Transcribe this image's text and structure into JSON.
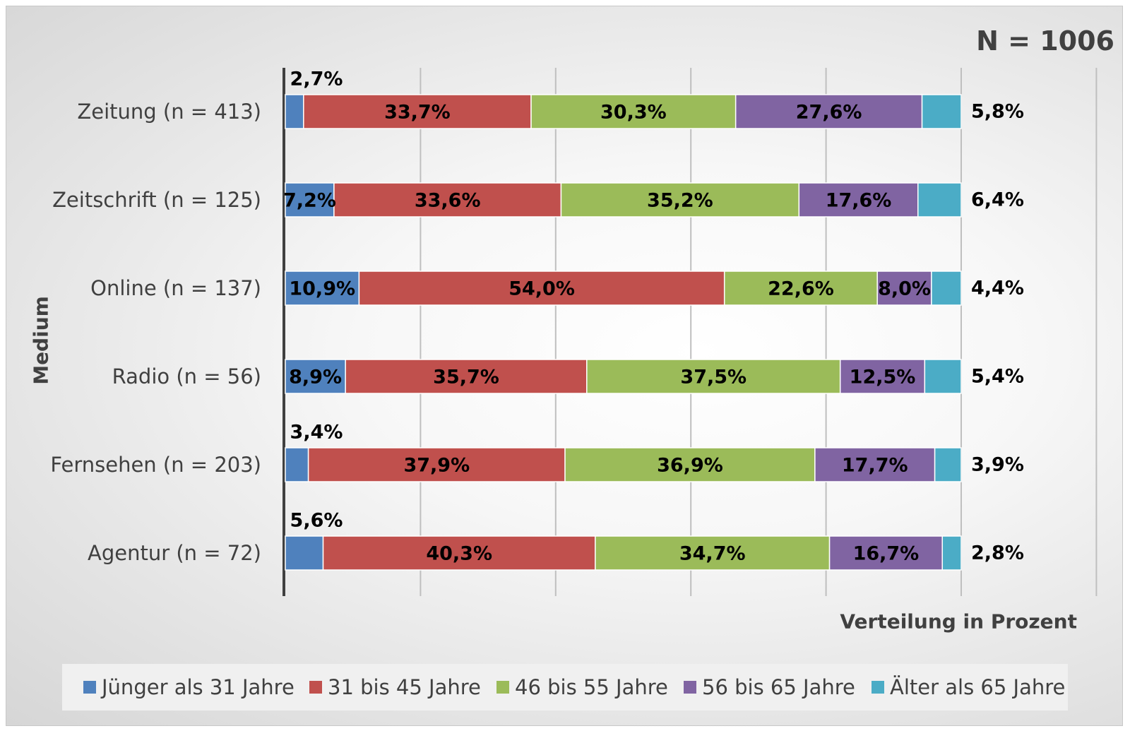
{
  "chart_data": {
    "type": "bar",
    "orientation": "horizontal",
    "stacked": true,
    "annotation": "N = 1006",
    "ylabel": "Medium",
    "xlabel": "Verteilung in Prozent",
    "xlim": [
      0,
      100
    ],
    "grid": true,
    "legend_position": "bottom",
    "categories": [
      "Zeitung (n = 413)",
      "Zeitschrift (n = 125)",
      "Online (n = 137)",
      "Radio (n = 56)",
      "Fernsehen (n = 203)",
      "Agentur (n = 72)"
    ],
    "series": [
      {
        "name": "Jünger als 31 Jahre",
        "color": "#4f81bd",
        "values": [
          2.7,
          7.2,
          10.9,
          8.9,
          3.4,
          5.6
        ],
        "labels": [
          "2,7%",
          "7,2%",
          "10,9%",
          "8,9%",
          "3,4%",
          "5,6%"
        ]
      },
      {
        "name": "31 bis 45 Jahre",
        "color": "#c0504d",
        "values": [
          33.7,
          33.6,
          54.0,
          35.7,
          37.9,
          40.3
        ],
        "labels": [
          "33,7%",
          "33,6%",
          "54,0%",
          "35,7%",
          "37,9%",
          "40,3%"
        ]
      },
      {
        "name": "46 bis 55 Jahre",
        "color": "#9bbb59",
        "values": [
          30.3,
          35.2,
          22.6,
          37.5,
          36.9,
          34.7
        ],
        "labels": [
          "30,3%",
          "35,2%",
          "22,6%",
          "37,5%",
          "36,9%",
          "34,7%"
        ]
      },
      {
        "name": "56 bis 65 Jahre",
        "color": "#8064a2",
        "values": [
          27.6,
          17.6,
          8.0,
          12.5,
          17.7,
          16.7
        ],
        "labels": [
          "27,6%",
          "17,6%",
          "8,0%",
          "12,5%",
          "17,7%",
          "16,7%"
        ]
      },
      {
        "name": "Älter als 65 Jahre",
        "color": "#4bacc6",
        "values": [
          5.8,
          6.4,
          4.4,
          5.4,
          3.9,
          2.8
        ],
        "labels": [
          "5,8%",
          "6,4%",
          "4,4%",
          "5,4%",
          "3,9%",
          "2,8%"
        ]
      }
    ]
  }
}
